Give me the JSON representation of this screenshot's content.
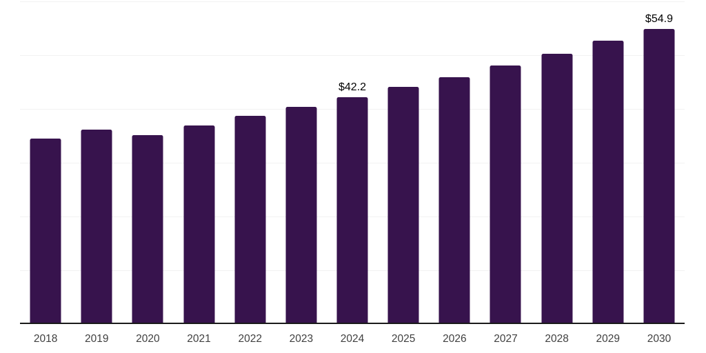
{
  "chart_data": {
    "type": "bar",
    "title": "",
    "xlabel": "",
    "ylabel": "",
    "categories": [
      "2018",
      "2019",
      "2020",
      "2021",
      "2022",
      "2023",
      "2024",
      "2025",
      "2026",
      "2027",
      "2028",
      "2029",
      "2030"
    ],
    "values": [
      34.5,
      36.2,
      35.1,
      36.9,
      38.7,
      40.4,
      42.2,
      44.1,
      45.9,
      48.1,
      50.3,
      52.7,
      54.9
    ],
    "data_labels": {
      "2024": "$42.2",
      "2030": "$54.9"
    },
    "ylim": [
      0,
      60
    ],
    "gridline_interval": 10,
    "grid": "horizontal",
    "legend_position": "none"
  },
  "colors": {
    "bar": "#37134D",
    "axis_line": "#1a1a1a",
    "gridline": "#f2f2f2",
    "tick_label": "#404040",
    "data_label": "#000000",
    "background": "#ffffff"
  }
}
